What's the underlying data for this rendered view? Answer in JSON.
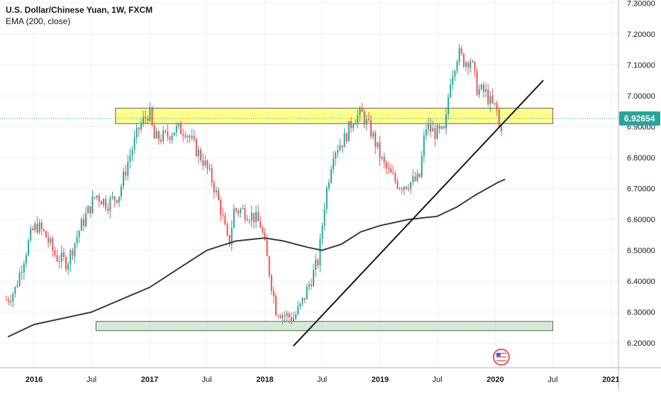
{
  "header": {
    "symbol_line": "U.S. Dollar/Chinese Yuan, 1W, FXCM",
    "indicator_line": "EMA (200, close)"
  },
  "badge": {
    "price": "6.92654",
    "color": "#26a69a"
  },
  "colors": {
    "up": "#26a69a",
    "down": "#ef5350",
    "ema": "#363a45",
    "trendline": "#131722",
    "resistance_fill": "#ffff66",
    "support_fill": "#c8e6c9",
    "grid": "#eef0f3",
    "axis_text": "#131722"
  },
  "chart_data": {
    "type": "candlestick",
    "title": "U.S. Dollar/Chinese Yuan, 1W, FXCM",
    "indicator": "EMA (200, close)",
    "x_ticks": [
      "2016",
      "Jul",
      "2017",
      "Jul",
      "2018",
      "Jul",
      "2019",
      "Jul",
      "2020",
      "Jul",
      "2021"
    ],
    "x_tick_dates": [
      "2016-01-01",
      "2016-07-01",
      "2017-01-01",
      "2017-07-01",
      "2018-01-01",
      "2018-07-01",
      "2019-01-01",
      "2019-07-01",
      "2020-01-01",
      "2020-07-01",
      "2021-01-01"
    ],
    "y_ticks": [
      "7.30000",
      "7.20000",
      "7.10000",
      "7.00000",
      "6.90000",
      "6.80000",
      "6.70000",
      "6.60000",
      "6.50000",
      "6.40000",
      "6.30000",
      "6.20000"
    ],
    "ylim": [
      6.12,
      7.31
    ],
    "xlim": [
      "2015-09-15",
      "2021-01-25"
    ],
    "last_price": 6.92654,
    "price_path": [
      [
        "2015-10-05",
        6.34
      ],
      [
        "2015-11-01",
        6.37
      ],
      [
        "2015-12-01",
        6.48
      ],
      [
        "2015-12-25",
        6.56
      ],
      [
        "2016-01-10",
        6.58
      ],
      [
        "2016-02-05",
        6.55
      ],
      [
        "2016-03-10",
        6.48
      ],
      [
        "2016-04-15",
        6.46
      ],
      [
        "2016-05-25",
        6.57
      ],
      [
        "2016-07-15",
        6.68
      ],
      [
        "2016-08-20",
        6.65
      ],
      [
        "2016-09-25",
        6.68
      ],
      [
        "2016-10-25",
        6.79
      ],
      [
        "2016-11-30",
        6.9
      ],
      [
        "2016-12-31",
        6.95
      ],
      [
        "2017-01-15",
        6.86
      ],
      [
        "2017-02-25",
        6.87
      ],
      [
        "2017-03-20",
        6.89
      ],
      [
        "2017-04-25",
        6.89
      ],
      [
        "2017-05-20",
        6.84
      ],
      [
        "2017-06-20",
        6.79
      ],
      [
        "2017-07-20",
        6.72
      ],
      [
        "2017-08-15",
        6.63
      ],
      [
        "2017-09-08",
        6.51
      ],
      [
        "2017-09-25",
        6.63
      ],
      [
        "2017-10-20",
        6.63
      ],
      [
        "2017-11-25",
        6.61
      ],
      [
        "2017-12-20",
        6.58
      ],
      [
        "2018-01-10",
        6.46
      ],
      [
        "2018-02-05",
        6.31
      ],
      [
        "2018-03-05",
        6.29
      ],
      [
        "2018-04-01",
        6.28
      ],
      [
        "2018-04-25",
        6.32
      ],
      [
        "2018-05-25",
        6.4
      ],
      [
        "2018-06-20",
        6.47
      ],
      [
        "2018-07-10",
        6.66
      ],
      [
        "2018-08-05",
        6.82
      ],
      [
        "2018-09-10",
        6.86
      ],
      [
        "2018-10-10",
        6.93
      ],
      [
        "2018-11-05",
        6.94
      ],
      [
        "2018-12-05",
        6.88
      ],
      [
        "2019-01-10",
        6.78
      ],
      [
        "2019-02-05",
        6.74
      ],
      [
        "2019-03-05",
        6.71
      ],
      [
        "2019-04-10",
        6.72
      ],
      [
        "2019-05-05",
        6.73
      ],
      [
        "2019-05-25",
        6.9
      ],
      [
        "2019-06-25",
        6.88
      ],
      [
        "2019-07-25",
        6.88
      ],
      [
        "2019-08-10",
        7.05
      ],
      [
        "2019-09-05",
        7.14
      ],
      [
        "2019-09-25",
        7.11
      ],
      [
        "2019-10-15",
        7.12
      ],
      [
        "2019-11-05",
        7.02
      ],
      [
        "2019-12-01",
        7.01
      ],
      [
        "2019-12-20",
        6.97
      ],
      [
        "2020-01-05",
        6.96
      ],
      [
        "2020-01-15",
        6.88
      ],
      [
        "2020-01-25",
        6.92654
      ]
    ],
    "ema_200": [
      [
        "2015-10-10",
        6.22
      ],
      [
        "2016-01-01",
        6.26
      ],
      [
        "2016-07-01",
        6.3
      ],
      [
        "2017-01-01",
        6.38
      ],
      [
        "2017-04-01",
        6.44
      ],
      [
        "2017-07-01",
        6.5
      ],
      [
        "2017-10-01",
        6.53
      ],
      [
        "2017-12-31",
        6.54
      ],
      [
        "2018-03-01",
        6.53
      ],
      [
        "2018-05-15",
        6.51
      ],
      [
        "2018-07-01",
        6.5
      ],
      [
        "2018-09-01",
        6.52
      ],
      [
        "2018-11-01",
        6.56
      ],
      [
        "2019-01-01",
        6.58
      ],
      [
        "2019-04-01",
        6.6
      ],
      [
        "2019-07-01",
        6.61
      ],
      [
        "2019-09-01",
        6.64
      ],
      [
        "2019-11-01",
        6.68
      ],
      [
        "2020-01-10",
        6.72
      ],
      [
        "2020-02-01",
        6.73
      ]
    ],
    "trendline": {
      "from": [
        "2018-04-01",
        6.19
      ],
      "to": [
        "2020-06-01",
        7.05
      ]
    },
    "resistance_zone": {
      "from": "2016-09-15",
      "to": "2020-07-01",
      "y_range": [
        6.91,
        6.96
      ]
    },
    "support_zone": {
      "from": "2016-07-15",
      "to": "2020-07-01",
      "y_range": [
        6.24,
        6.27
      ]
    }
  }
}
